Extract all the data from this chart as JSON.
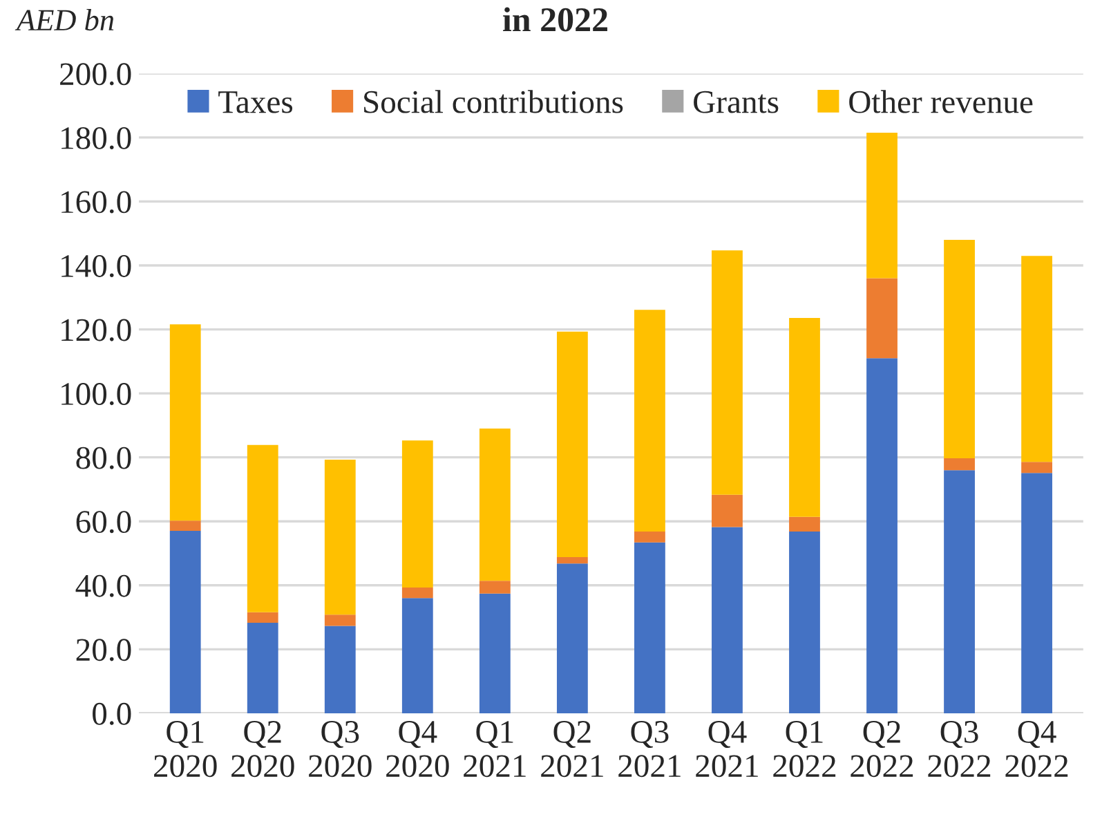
{
  "chart_data": {
    "type": "bar",
    "title": "in 2022",
    "ylabel": "AED bn",
    "stacked": true,
    "categories": [
      "Q1\n2020",
      "Q2\n2020",
      "Q3\n2020",
      "Q4\n2020",
      "Q1\n2021",
      "Q2\n2021",
      "Q3\n2021",
      "Q4\n2021",
      "Q1\n2022",
      "Q2\n2022",
      "Q3\n2022",
      "Q4\n2022"
    ],
    "series": [
      {
        "name": "Taxes",
        "color": "#4472c4",
        "values": [
          57.0,
          28.3,
          27.3,
          36.0,
          37.4,
          46.8,
          53.4,
          58.2,
          56.8,
          111.0,
          76.0,
          75.1
        ]
      },
      {
        "name": "Social contributions",
        "color": "#ed7d31",
        "values": [
          3.2,
          3.3,
          3.5,
          3.3,
          4.0,
          2.0,
          3.4,
          10.1,
          4.6,
          25.0,
          3.7,
          3.5
        ]
      },
      {
        "name": "Grants",
        "color": "#a5a5a5",
        "values": [
          0,
          0,
          0,
          0,
          0,
          0,
          0,
          0,
          0,
          0,
          0,
          0
        ]
      },
      {
        "name": "Other revenue",
        "color": "#ffc000",
        "values": [
          61.4,
          52.3,
          48.5,
          46.0,
          47.6,
          70.5,
          69.3,
          76.4,
          62.2,
          45.5,
          68.3,
          64.4
        ]
      }
    ],
    "ylim": [
      0,
      200
    ],
    "yticks": [
      {
        "value": 0,
        "label": "0.0"
      },
      {
        "value": 20,
        "label": "20.0"
      },
      {
        "value": 40,
        "label": "40.0"
      },
      {
        "value": 60,
        "label": "60.0"
      },
      {
        "value": 80,
        "label": "80.0"
      },
      {
        "value": 100,
        "label": "100.0"
      },
      {
        "value": 120,
        "label": "120.0"
      },
      {
        "value": 140,
        "label": "140.0"
      },
      {
        "value": 160,
        "label": "160.0"
      },
      {
        "value": 180,
        "label": "180.0"
      },
      {
        "value": 200,
        "label": "200.0"
      }
    ],
    "grid": "y",
    "legend": "top"
  }
}
